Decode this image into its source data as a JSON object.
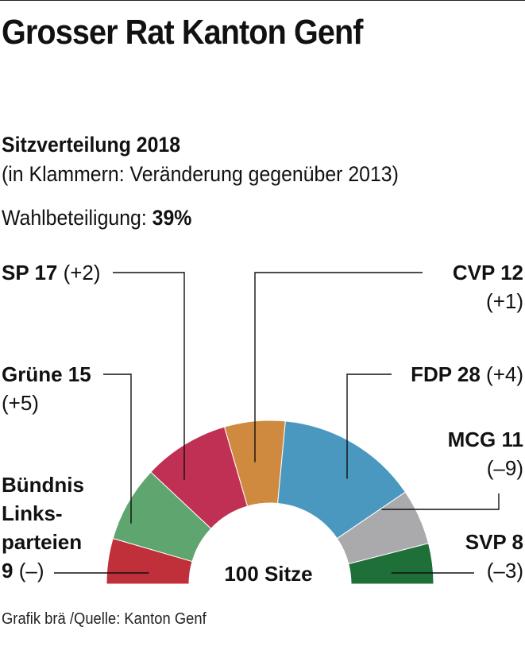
{
  "title": "Grosser Rat Kanton Genf",
  "subtitle": "Sitzverteilung 2018",
  "note": "(in Klammern: Veränderung gegenüber 2013)",
  "turnout_label": "Wahlbeteiligung:",
  "turnout_value": "39%",
  "footer": "Grafik brä /Quelle: Kanton Genf",
  "chart_data": {
    "type": "pie",
    "subtype": "parliament-half-donut",
    "title": "Sitzverteilung 2018",
    "center_label": "100 Sitze",
    "total": 100,
    "parties": [
      {
        "id": "bl",
        "label_lines": [
          "Bündnis",
          "Links-",
          "parteien"
        ],
        "value_text": "9",
        "change": "(–)",
        "seats": 9,
        "color": "#c0303a"
      },
      {
        "id": "gr",
        "label_lines": [
          "Grüne 15"
        ],
        "change": "(+5)",
        "seats": 15,
        "color": "#5ea570"
      },
      {
        "id": "sp",
        "label_lines": [
          "SP 17"
        ],
        "change": "(+2)",
        "seats": 17,
        "color": "#c03054"
      },
      {
        "id": "cvp",
        "label_lines": [
          "CVP 12"
        ],
        "change": "(+1)",
        "seats": 12,
        "color": "#cf8a40"
      },
      {
        "id": "fdp",
        "label_lines": [
          "FDP 28"
        ],
        "change": "(+4)",
        "seats": 28,
        "color": "#4a98c0"
      },
      {
        "id": "mcg",
        "label_lines": [
          "MCG 11"
        ],
        "change": "(–9)",
        "seats": 11,
        "color": "#aaaaad"
      },
      {
        "id": "svp",
        "label_lines": [
          "SVP 8"
        ],
        "change": "(–3)",
        "seats": 8,
        "color": "#1f6f38"
      }
    ]
  }
}
